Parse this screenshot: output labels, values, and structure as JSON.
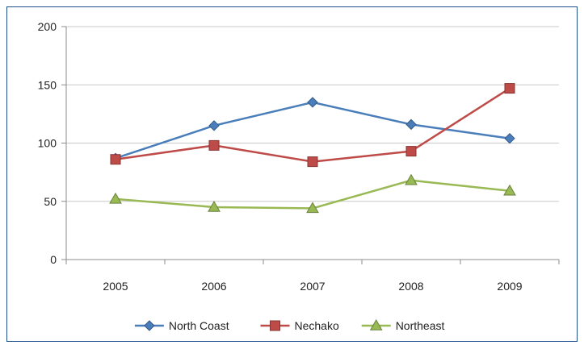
{
  "chart_data": {
    "type": "line",
    "categories": [
      "2005",
      "2006",
      "2007",
      "2008",
      "2009"
    ],
    "ylim": [
      0,
      200
    ],
    "yticks": [
      0,
      50,
      100,
      150,
      200
    ],
    "ytick_labels": [
      "0",
      "50",
      "100",
      "150",
      "200"
    ],
    "grid": true,
    "legend_position": "bottom",
    "series": [
      {
        "name": "North Coast",
        "values": [
          87,
          115,
          135,
          116,
          104
        ],
        "color": "#4a7ebb",
        "marker": "diamond"
      },
      {
        "name": "Nechako",
        "values": [
          86,
          98,
          84,
          93,
          147
        ],
        "color": "#be4b48",
        "marker": "square"
      },
      {
        "name": "Northeast",
        "values": [
          52,
          45,
          44,
          68,
          59
        ],
        "color": "#98b954",
        "marker": "triangle"
      }
    ]
  }
}
